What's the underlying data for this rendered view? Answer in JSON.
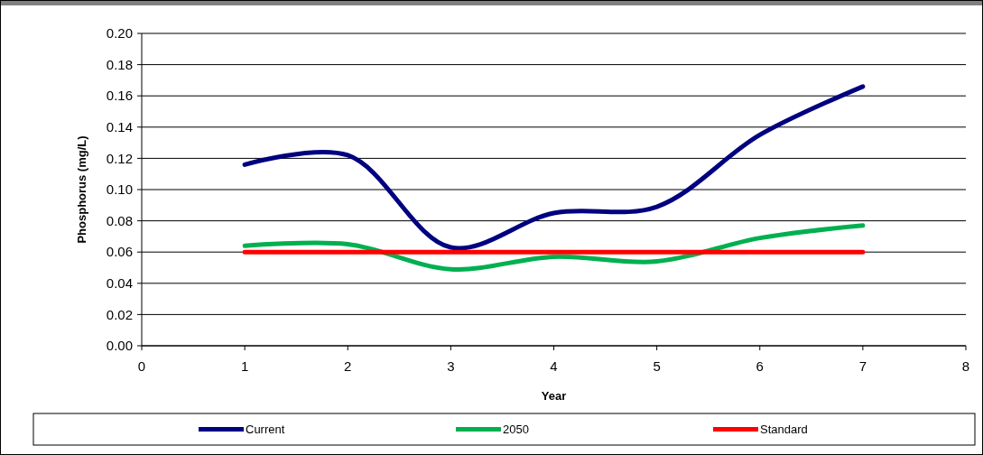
{
  "chart_data": {
    "type": "line",
    "xlabel": "Year",
    "ylabel": "Phosphorus (mg/L)",
    "x": [
      1,
      2,
      3,
      4,
      5,
      6,
      7
    ],
    "series": [
      {
        "name": "Current",
        "color": "#000080",
        "values": [
          0.116,
          0.122,
          0.063,
          0.085,
          0.089,
          0.135,
          0.166
        ]
      },
      {
        "name": "2050",
        "color": "#00b050",
        "values": [
          0.064,
          0.065,
          0.049,
          0.057,
          0.054,
          0.069,
          0.077
        ]
      },
      {
        "name": "Standard",
        "color": "#ff0000",
        "values": [
          0.06,
          0.06,
          0.06,
          0.06,
          0.06,
          0.06,
          0.06
        ]
      }
    ],
    "xlim": [
      0,
      8
    ],
    "xticks": [
      0,
      1,
      2,
      3,
      4,
      5,
      6,
      7,
      8
    ],
    "ylim": [
      0,
      0.2
    ],
    "yticks": [
      {
        "value": 0,
        "label": "0.00"
      },
      {
        "value": 0.02,
        "label": "0.02"
      },
      {
        "value": 0.04,
        "label": "0.04"
      },
      {
        "value": 0.06,
        "label": "0.06"
      },
      {
        "value": 0.08,
        "label": "0.08"
      },
      {
        "value": 0.1,
        "label": "0.10"
      },
      {
        "value": 0.12,
        "label": "0.12"
      },
      {
        "value": 0.14,
        "label": "0.14"
      },
      {
        "value": 0.16,
        "label": "0.16"
      },
      {
        "value": 0.18,
        "label": "0.18"
      },
      {
        "value": 0.2,
        "label": "0.20"
      }
    ],
    "grid": "y",
    "legend": "bottom",
    "marker": "none",
    "line_style": "solid"
  }
}
